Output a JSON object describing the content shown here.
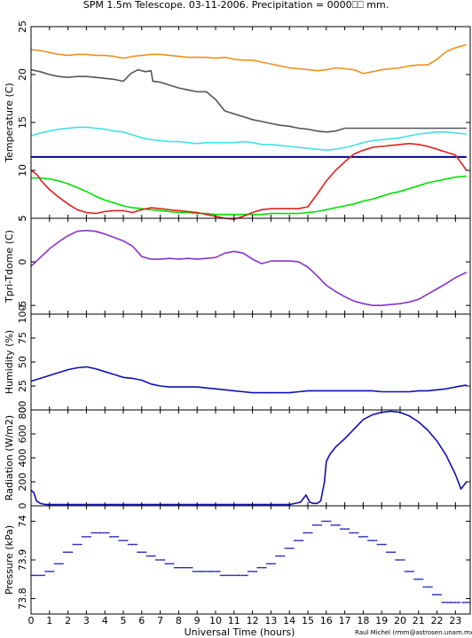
{
  "title": "SPM 1.5m Telescope. 03-11-2006. Precipitation = 0000⎕⎕ mm.",
  "credit": "Raul Michel (rmm@astrosen.unam.mx)",
  "chart_data": [
    {
      "type": "line",
      "ylabel": "Temperature (C)",
      "ylim": [
        5,
        25
      ],
      "yticks": [
        5,
        10,
        15,
        20,
        25
      ],
      "series": [
        {
          "color": "#f0901e",
          "x": [
            0,
            0.5,
            1,
            1.5,
            2,
            2.5,
            3,
            3.5,
            4,
            4.5,
            5,
            5.5,
            6,
            6.5,
            7,
            7.5,
            8,
            8.5,
            9,
            9.5,
            10,
            10.5,
            11,
            11.5,
            12,
            12.5,
            13,
            13.5,
            14,
            14.5,
            15,
            15.5,
            16,
            16.5,
            17,
            17.5,
            18,
            18.5,
            19,
            19.5,
            20,
            20.5,
            21,
            21.5,
            22,
            22.5,
            23,
            23.6
          ],
          "y": [
            22.6,
            22.5,
            22.3,
            22.1,
            22.0,
            22.1,
            22.1,
            22.0,
            22.0,
            21.9,
            21.7,
            21.9,
            22.0,
            22.1,
            22.1,
            22.0,
            21.9,
            21.8,
            21.8,
            21.8,
            21.7,
            21.8,
            21.6,
            21.5,
            21.5,
            21.3,
            21.1,
            20.9,
            20.7,
            20.6,
            20.5,
            20.4,
            20.5,
            20.7,
            20.6,
            20.5,
            20.1,
            20.3,
            20.5,
            20.6,
            20.7,
            20.9,
            21.0,
            21.0,
            21.6,
            22.4,
            22.8,
            23.1
          ]
        },
        {
          "color": "#555555",
          "x": [
            0,
            0.5,
            1,
            1.5,
            2,
            2.5,
            3,
            3.5,
            4,
            4.5,
            5,
            5.4,
            5.8,
            6.2,
            6.5,
            6.6,
            7,
            7.5,
            8,
            8.5,
            9,
            9.5,
            10,
            10.5,
            11,
            11.5,
            12,
            12.5,
            13,
            13.5,
            14,
            14.5,
            15,
            15.5,
            16,
            16.5,
            17,
            18,
            19,
            20,
            21,
            22,
            23,
            23.6
          ],
          "y": [
            20.5,
            20.3,
            20.0,
            19.8,
            19.7,
            19.8,
            19.8,
            19.7,
            19.6,
            19.5,
            19.3,
            20.1,
            20.5,
            20.3,
            20.4,
            19.3,
            19.2,
            18.9,
            18.6,
            18.4,
            18.2,
            18.2,
            17.4,
            16.2,
            15.9,
            15.6,
            15.3,
            15.1,
            14.9,
            14.7,
            14.6,
            14.4,
            14.3,
            14.1,
            14.0,
            14.1,
            14.4,
            14.4,
            14.4,
            14.4,
            14.4,
            14.4,
            14.4,
            14.4
          ]
        },
        {
          "color": "#40e0e8",
          "x": [
            0,
            0.5,
            1,
            1.5,
            2,
            2.5,
            3,
            3.5,
            4,
            4.5,
            5,
            5.5,
            6,
            6.5,
            7,
            7.5,
            8,
            8.5,
            9,
            9.5,
            10,
            10.5,
            11,
            11.5,
            12,
            12.5,
            13,
            13.5,
            14,
            14.5,
            15,
            15.5,
            16,
            16.5,
            17,
            17.5,
            18,
            18.5,
            19,
            19.5,
            20,
            20.5,
            21,
            21.5,
            22,
            22.5,
            23,
            23.6
          ],
          "y": [
            13.6,
            13.9,
            14.1,
            14.3,
            14.4,
            14.5,
            14.5,
            14.4,
            14.3,
            14.1,
            14.0,
            13.7,
            13.4,
            13.2,
            13.1,
            13.0,
            13.0,
            12.9,
            12.8,
            12.9,
            12.9,
            12.9,
            12.9,
            13.0,
            12.9,
            12.7,
            12.7,
            12.6,
            12.5,
            12.4,
            12.3,
            12.2,
            12.1,
            12.2,
            12.4,
            12.6,
            12.9,
            13.1,
            13.2,
            13.3,
            13.4,
            13.6,
            13.8,
            13.9,
            14.0,
            14.0,
            13.9,
            13.8
          ]
        },
        {
          "color": "#0000a0",
          "x": [
            0,
            23.6
          ],
          "y": [
            11.4,
            11.4
          ]
        },
        {
          "color": "#00e000",
          "x": [
            0,
            0.5,
            1,
            1.5,
            2,
            2.5,
            3,
            3.5,
            4,
            4.5,
            5,
            5.5,
            6,
            6.5,
            7,
            7.5,
            8,
            8.5,
            9,
            9.5,
            10,
            10.5,
            11,
            11.5,
            12,
            12.5,
            13,
            13.5,
            14,
            14.5,
            15,
            15.5,
            16,
            16.5,
            17,
            17.5,
            18,
            18.5,
            19,
            19.5,
            20,
            20.5,
            21,
            21.5,
            22,
            22.5,
            23,
            23.6
          ],
          "y": [
            9.2,
            9.2,
            9.1,
            8.9,
            8.6,
            8.2,
            7.8,
            7.3,
            6.9,
            6.6,
            6.3,
            6.1,
            6.0,
            5.9,
            5.8,
            5.7,
            5.6,
            5.6,
            5.5,
            5.5,
            5.4,
            5.4,
            5.4,
            5.4,
            5.4,
            5.4,
            5.5,
            5.5,
            5.5,
            5.5,
            5.6,
            5.7,
            5.9,
            6.1,
            6.3,
            6.5,
            6.8,
            7.0,
            7.3,
            7.6,
            7.8,
            8.1,
            8.4,
            8.7,
            8.9,
            9.1,
            9.3,
            9.4
          ]
        },
        {
          "color": "#e02020",
          "x": [
            0,
            0.3,
            0.6,
            1,
            1.5,
            2,
            2.5,
            3,
            3.5,
            4,
            4.5,
            5,
            5.5,
            6,
            6.5,
            7,
            7.5,
            8,
            8.5,
            9,
            9.5,
            10,
            10.5,
            11,
            11.5,
            12,
            12.5,
            13,
            13.5,
            14,
            14.5,
            15,
            15.5,
            16,
            16.5,
            17,
            17.5,
            18,
            18.5,
            19,
            19.5,
            20,
            20.5,
            21,
            21.5,
            22,
            22.5,
            23,
            23.6
          ],
          "y": [
            10.0,
            9.6,
            8.8,
            8.0,
            7.2,
            6.5,
            5.9,
            5.6,
            5.5,
            5.7,
            5.8,
            5.8,
            5.6,
            5.9,
            6.1,
            6.0,
            5.9,
            5.8,
            5.7,
            5.6,
            5.4,
            5.2,
            5.0,
            4.9,
            5.2,
            5.6,
            5.9,
            6.0,
            6.0,
            6.0,
            6.0,
            6.2,
            7.5,
            8.9,
            10.0,
            10.9,
            11.7,
            12.1,
            12.4,
            12.5,
            12.6,
            12.7,
            12.8,
            12.7,
            12.5,
            12.2,
            11.9,
            11.6,
            10.0
          ]
        }
      ]
    },
    {
      "type": "line",
      "ylabel": "Tpri-Tdome (C)",
      "ylim": [
        -6,
        5
      ],
      "yticks": [
        -5,
        0,
        5
      ],
      "series": [
        {
          "color": "#8833cc",
          "x": [
            0,
            0.5,
            1,
            1.5,
            2,
            2.5,
            3,
            3.5,
            4,
            4.5,
            5,
            5.5,
            6,
            6.5,
            7,
            7.5,
            8,
            8.5,
            9,
            9.5,
            10,
            10.5,
            11,
            11.5,
            12,
            12.5,
            13,
            13.5,
            14,
            14.5,
            15,
            15.5,
            16,
            16.5,
            17,
            17.5,
            18,
            18.5,
            19,
            19.5,
            20,
            20.5,
            21,
            21.5,
            22,
            22.5,
            23,
            23.6
          ],
          "y": [
            -0.5,
            0.5,
            1.5,
            2.3,
            3.0,
            3.5,
            3.6,
            3.5,
            3.2,
            2.8,
            2.4,
            1.8,
            0.6,
            0.3,
            0.3,
            0.4,
            0.3,
            0.4,
            0.3,
            0.4,
            0.5,
            1.0,
            1.2,
            1.0,
            0.3,
            -0.2,
            0.1,
            0.1,
            0.1,
            0.0,
            -0.6,
            -1.6,
            -2.7,
            -3.4,
            -4.0,
            -4.5,
            -4.8,
            -5.0,
            -5.0,
            -4.9,
            -4.8,
            -4.6,
            -4.3,
            -3.7,
            -3.1,
            -2.5,
            -1.8,
            -1.2
          ]
        }
      ]
    },
    {
      "type": "line",
      "ylabel": "Humidity (%)",
      "ylim": [
        0,
        100
      ],
      "yticks": [
        0,
        25,
        50,
        75,
        100
      ],
      "series": [
        {
          "color": "#1010b0",
          "x": [
            0,
            0.5,
            1,
            1.5,
            2,
            2.5,
            3,
            3.5,
            4,
            4.5,
            5,
            5.5,
            6,
            6.5,
            7,
            7.5,
            8,
            8.5,
            9,
            9.5,
            10,
            10.5,
            11,
            11.5,
            12,
            12.5,
            13,
            13.5,
            14,
            14.5,
            15,
            15.5,
            16,
            16.5,
            17,
            17.5,
            18,
            18.5,
            19,
            19.5,
            20,
            20.5,
            21,
            21.5,
            22,
            22.5,
            23,
            23.6
          ],
          "y": [
            30,
            33,
            36,
            39,
            42,
            44,
            45,
            43,
            40,
            37,
            34,
            33,
            31,
            27,
            25,
            24,
            24,
            24,
            24,
            23,
            22,
            21,
            20,
            19,
            18,
            18,
            18,
            18,
            18,
            19,
            20,
            20,
            20,
            20,
            20,
            20,
            20,
            20,
            19,
            19,
            19,
            19,
            20,
            20,
            21,
            22,
            24,
            26
          ]
        }
      ]
    },
    {
      "type": "line",
      "ylabel": "Radiation (W/m2)",
      "ylim": [
        0,
        800
      ],
      "yticks": [
        0,
        200,
        400,
        600,
        800
      ],
      "series": [
        {
          "color": "#1010b0",
          "x": [
            0,
            0.15,
            0.3,
            0.5,
            0.8,
            1,
            2,
            4,
            6,
            8,
            10,
            12,
            14,
            14.6,
            14.9,
            15.1,
            15.3,
            15.5,
            15.7,
            15.9,
            16.0,
            16.2,
            16.5,
            17,
            17.5,
            18,
            18.5,
            19,
            19.5,
            20,
            20.5,
            21,
            21.5,
            22,
            22.5,
            23,
            23.3,
            23.6
          ],
          "y": [
            130,
            110,
            40,
            20,
            10,
            10,
            10,
            10,
            10,
            10,
            10,
            10,
            10,
            30,
            90,
            30,
            20,
            20,
            40,
            200,
            370,
            430,
            490,
            560,
            640,
            720,
            760,
            780,
            790,
            780,
            750,
            700,
            630,
            540,
            420,
            260,
            140,
            200
          ]
        }
      ]
    },
    {
      "type": "scatter",
      "ylabel": "Pressure (kPa)",
      "ylim": [
        73.76,
        74.04
      ],
      "yticks": [
        73.8,
        73.9,
        74.0
      ],
      "series": [
        {
          "color": "#1010b0",
          "x": [
            0,
            0.5,
            1,
            1.5,
            2,
            2.5,
            3,
            3.5,
            4,
            4.5,
            5,
            5.5,
            6,
            6.5,
            7,
            7.5,
            8,
            8.5,
            9,
            9.5,
            10,
            10.5,
            11,
            11.5,
            12,
            12.5,
            13,
            13.5,
            14,
            14.5,
            15,
            15.5,
            16,
            16.5,
            17,
            17.5,
            18,
            18.5,
            19,
            19.5,
            20,
            20.5,
            21,
            21.5,
            22,
            22.5,
            23,
            23.6
          ],
          "y": [
            73.86,
            73.86,
            73.87,
            73.89,
            73.92,
            73.94,
            73.96,
            73.97,
            73.97,
            73.96,
            73.95,
            73.94,
            73.92,
            73.91,
            73.9,
            73.89,
            73.88,
            73.88,
            73.87,
            73.87,
            73.87,
            73.86,
            73.86,
            73.86,
            73.87,
            73.88,
            73.89,
            73.91,
            73.93,
            73.95,
            73.97,
            73.99,
            74.0,
            73.99,
            73.98,
            73.97,
            73.96,
            73.95,
            73.94,
            73.92,
            73.9,
            73.87,
            73.85,
            73.83,
            73.81,
            73.79,
            73.79,
            73.79
          ]
        }
      ]
    }
  ],
  "xaxis": {
    "label": "Universal Time (hours)",
    "xlim": [
      0,
      23.8
    ],
    "ticks": [
      0,
      1,
      2,
      3,
      4,
      5,
      6,
      7,
      8,
      9,
      10,
      11,
      12,
      13,
      14,
      15,
      16,
      17,
      18,
      19,
      20,
      21,
      22,
      23
    ]
  }
}
